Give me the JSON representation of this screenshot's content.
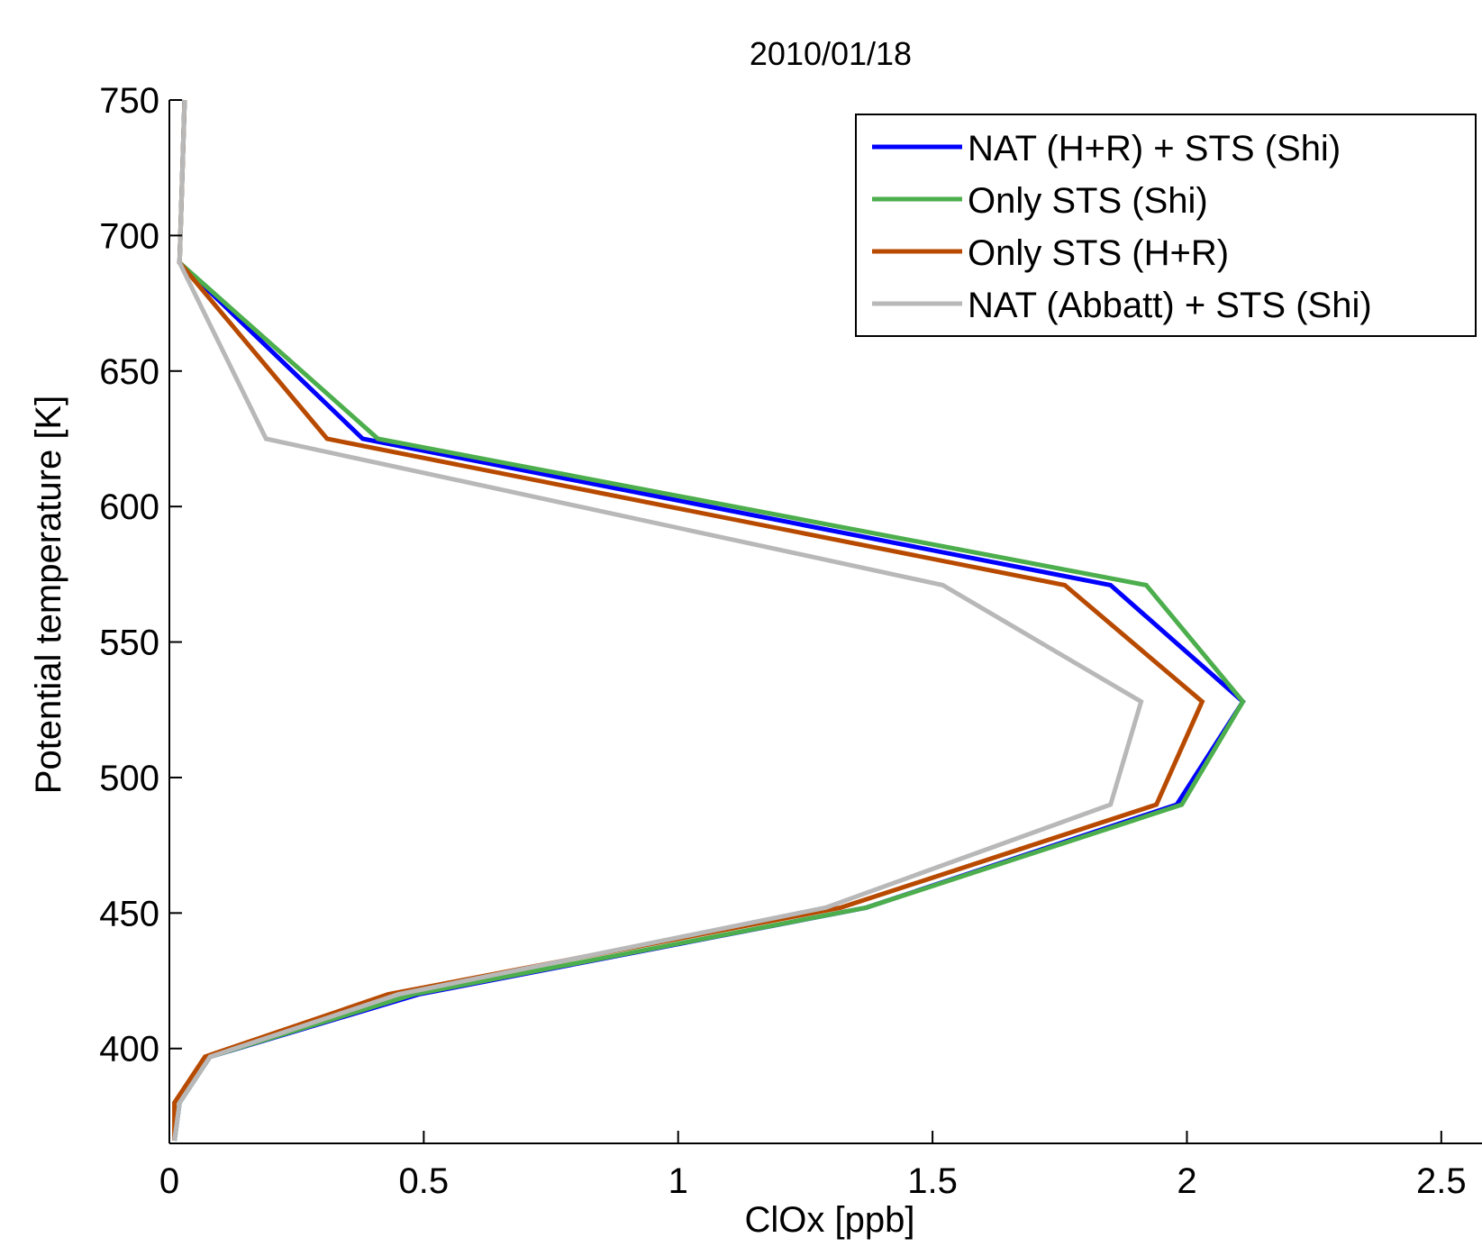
{
  "chart_data": {
    "type": "line",
    "title": "2010/01/18",
    "xlabel": "ClOx [ppb]",
    "ylabel": "Potential temperature [K]",
    "xlim": [
      0,
      2.58
    ],
    "ylim": [
      365,
      750
    ],
    "x_ticks": [
      0,
      0.5,
      1,
      1.5,
      2,
      2.5
    ],
    "x_tick_labels": [
      "0",
      "0.5",
      "1",
      "1.5",
      "2",
      "2.5"
    ],
    "y_ticks": [
      400,
      450,
      500,
      550,
      600,
      650,
      700,
      750
    ],
    "y_tick_labels": [
      "400",
      "450",
      "500",
      "550",
      "600",
      "650",
      "700",
      "750"
    ],
    "grid": false,
    "legend_position": "top-right",
    "series": [
      {
        "name": "NAT (H+R) + STS (Shi)",
        "color": "#0000ff",
        "points": [
          [
            0.01,
            366
          ],
          [
            0.02,
            380
          ],
          [
            0.08,
            397
          ],
          [
            0.49,
            420
          ],
          [
            1.37,
            452
          ],
          [
            1.98,
            490
          ],
          [
            2.11,
            528
          ],
          [
            1.85,
            571
          ],
          [
            0.38,
            625
          ],
          [
            0.02,
            690
          ],
          [
            0.03,
            750
          ]
        ]
      },
      {
        "name": "Only STS (Shi)",
        "color": "#4cae4c",
        "points": [
          [
            0.01,
            366
          ],
          [
            0.02,
            380
          ],
          [
            0.08,
            397
          ],
          [
            0.48,
            420
          ],
          [
            1.37,
            452
          ],
          [
            1.99,
            490
          ],
          [
            2.11,
            528
          ],
          [
            1.92,
            571
          ],
          [
            0.41,
            625
          ],
          [
            0.02,
            690
          ],
          [
            0.03,
            750
          ]
        ]
      },
      {
        "name": "Only STS (H+R)",
        "color": "#b84a00",
        "points": [
          [
            0.01,
            366
          ],
          [
            0.01,
            380
          ],
          [
            0.07,
            397
          ],
          [
            0.43,
            420
          ],
          [
            1.32,
            452
          ],
          [
            1.94,
            490
          ],
          [
            2.03,
            528
          ],
          [
            1.76,
            571
          ],
          [
            0.31,
            625
          ],
          [
            0.02,
            690
          ],
          [
            0.03,
            750
          ]
        ]
      },
      {
        "name": "NAT (Abbatt) + STS (Shi)",
        "color": "#b8b8b8",
        "points": [
          [
            0.01,
            366
          ],
          [
            0.02,
            380
          ],
          [
            0.08,
            397
          ],
          [
            0.45,
            420
          ],
          [
            1.29,
            452
          ],
          [
            1.85,
            490
          ],
          [
            1.91,
            528
          ],
          [
            1.52,
            571
          ],
          [
            0.19,
            625
          ],
          [
            0.02,
            690
          ],
          [
            0.03,
            750
          ]
        ]
      }
    ]
  }
}
